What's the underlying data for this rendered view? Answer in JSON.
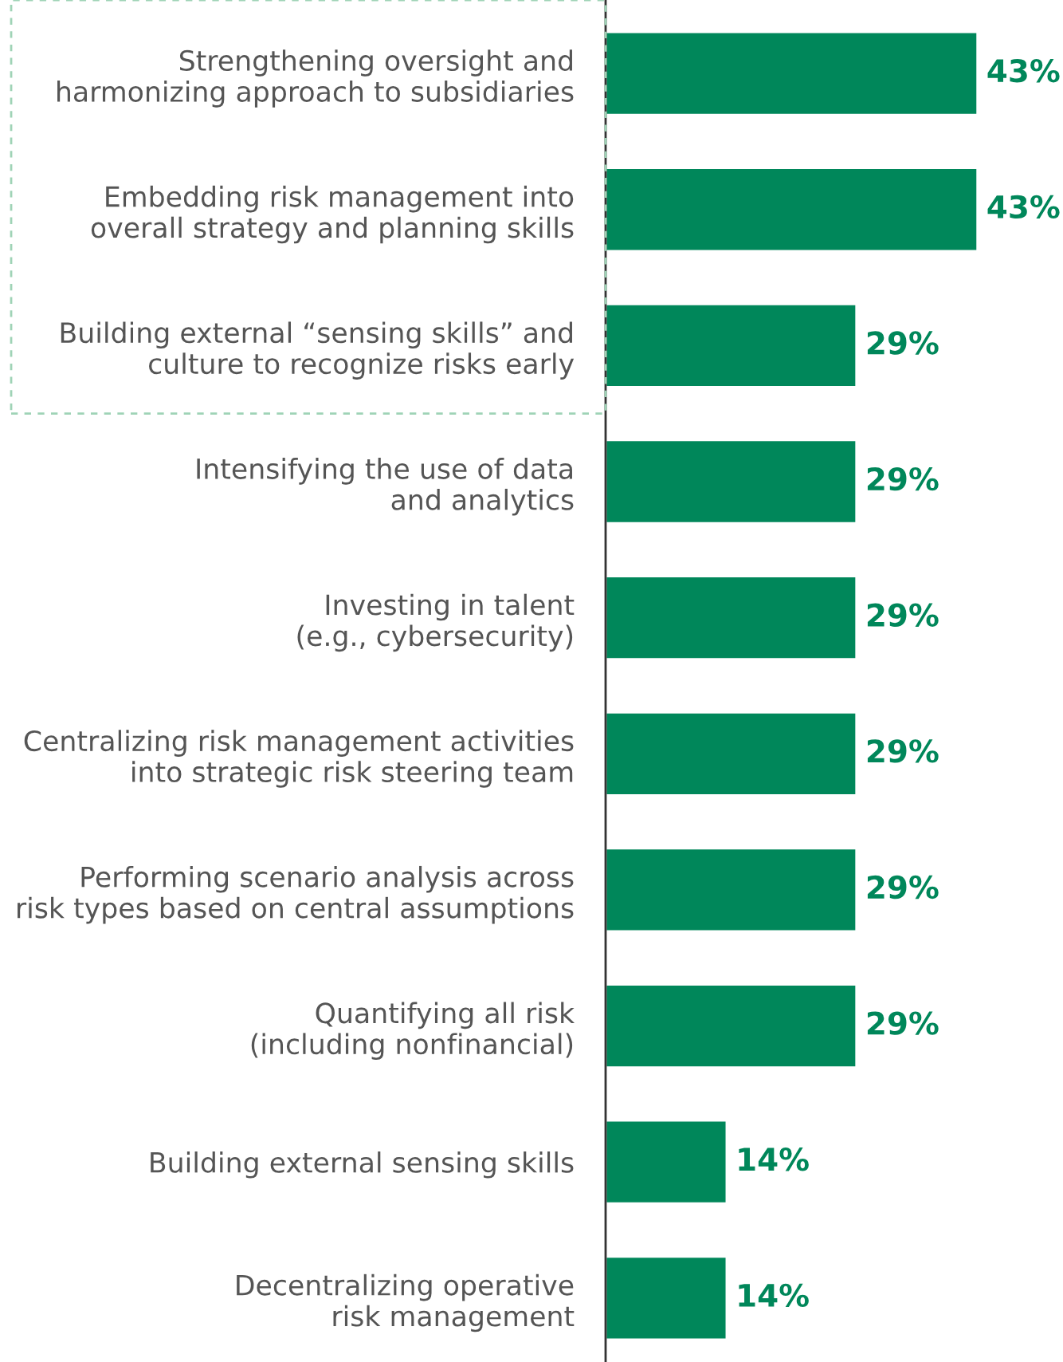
{
  "chart_data": {
    "type": "bar",
    "orientation": "horizontal",
    "data_labels": true,
    "color": "#00875a",
    "categories": [
      "Strengthening oversight and\nharmonizing approach to subsidiaries",
      "Embedding risk management into\noverall strategy and planning skills",
      "Building external “sensing skills” and\nculture to recognize risks early",
      "Intensifying the use of data\nand analytics",
      "Investing in talent\n(e.g., cybersecurity)",
      "Centralizing risk management activities\ninto strategic risk steering team",
      "Performing scenario analysis across\nrisk types based on central assumptions",
      "Quantifying all risk\n(including nonfinancial)",
      "Building external sensing skills",
      "Decentralizing operative\nrisk management"
    ],
    "values": [
      43,
      43,
      29,
      29,
      29,
      29,
      29,
      29,
      14,
      14
    ],
    "value_labels": [
      "43%",
      "43%",
      "29%",
      "29%",
      "29%",
      "29%",
      "29%",
      "29%",
      "14%",
      "14%"
    ]
  }
}
